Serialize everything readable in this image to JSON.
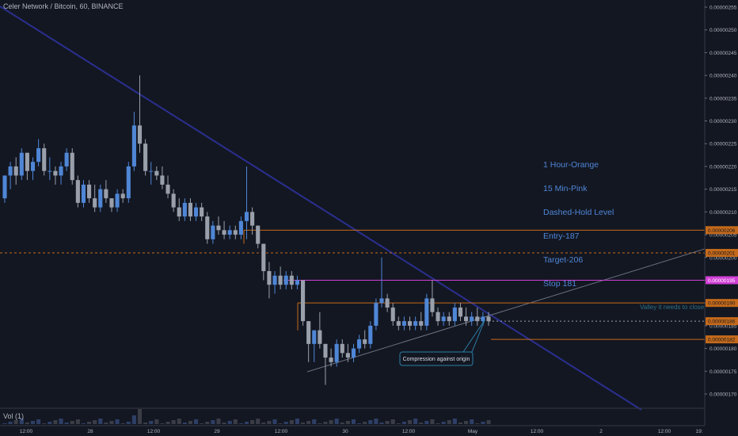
{
  "header": {
    "title": "Celer Network / Bitcoin, 60, BINANCE"
  },
  "volume": {
    "label": "Vol (1)"
  },
  "notes": [
    "1 Hour-Orange",
    "15 Min-Pink",
    "Dashed-Hold Level",
    "Entry-187",
    "Target-206",
    "Stop 181"
  ],
  "annotations": {
    "callout": "Compression against origin",
    "valley": "Valley it needs to close"
  },
  "colors": {
    "background": "#131722",
    "up": "#4f86d6",
    "down": "#9aa0ab",
    "orange": "#c56a1a",
    "pink": "#d13fd6",
    "trend": "#2a2f8f"
  },
  "chart_data": {
    "type": "candlestick",
    "symbol": "Celer Network / Bitcoin",
    "interval": "60",
    "exchange": "BINANCE",
    "y_ticks": [
      "0.00000170",
      "0.00000175",
      "0.00000180",
      "0.00000185",
      "0.00000190",
      "0.00000195",
      "0.00000200",
      "0.00000205",
      "0.00000210",
      "0.00000215",
      "0.00000220",
      "0.00000225",
      "0.00000230",
      "0.00000235",
      "0.00000240",
      "0.00000245",
      "0.00000250",
      "0.00000255"
    ],
    "x_ticks": [
      "12:00",
      "28",
      "12:00",
      "29",
      "12:00",
      "30",
      "12:00",
      "May",
      "12:00",
      "2",
      "12:00",
      "19:"
    ],
    "price_tags": [
      {
        "value": "0.00000206",
        "style": "orange"
      },
      {
        "value": "0.00000201",
        "style": "orange-dashed"
      },
      {
        "value": "0.00000195",
        "style": "pink"
      },
      {
        "value": "0.00000190",
        "style": "orange"
      },
      {
        "value": "0.00000186",
        "style": "orange-last"
      },
      {
        "value": "0.00000182",
        "style": "orange"
      }
    ],
    "candles": [
      [
        2.13e-06,
        2.18e-06,
        2.12e-06,
        2.18e-06
      ],
      [
        2.18e-06,
        2.21e-06,
        2.15e-06,
        2.2e-06
      ],
      [
        2.2e-06,
        2.22e-06,
        2.16e-06,
        2.18e-06
      ],
      [
        2.18e-06,
        2.24e-06,
        2.17e-06,
        2.23e-06
      ],
      [
        2.23e-06,
        2.23e-06,
        2.17e-06,
        2.19e-06
      ],
      [
        2.19e-06,
        2.22e-06,
        2.17e-06,
        2.21e-06
      ],
      [
        2.21e-06,
        2.26e-06,
        2.2e-06,
        2.24e-06
      ],
      [
        2.24e-06,
        2.25e-06,
        2.18e-06,
        2.19e-06
      ],
      [
        2.19e-06,
        2.22e-06,
        2.17e-06,
        2.19e-06
      ],
      [
        2.19e-06,
        2.2e-06,
        2.16e-06,
        2.18e-06
      ],
      [
        2.18e-06,
        2.21e-06,
        2.16e-06,
        2.2e-06
      ],
      [
        2.2e-06,
        2.24e-06,
        2.19e-06,
        2.23e-06
      ],
      [
        2.23e-06,
        2.24e-06,
        2.16e-06,
        2.17e-06
      ],
      [
        2.17e-06,
        2.18e-06,
        2.11e-06,
        2.12e-06
      ],
      [
        2.12e-06,
        2.17e-06,
        2.11e-06,
        2.16e-06
      ],
      [
        2.16e-06,
        2.17e-06,
        2.12e-06,
        2.13e-06
      ],
      [
        2.13e-06,
        2.16e-06,
        2.1e-06,
        2.11e-06
      ],
      [
        2.11e-06,
        2.16e-06,
        2.1e-06,
        2.15e-06
      ],
      [
        2.15e-06,
        2.17e-06,
        2.12e-06,
        2.13e-06
      ],
      [
        2.13e-06,
        2.13e-06,
        2.1e-06,
        2.11e-06
      ],
      [
        2.11e-06,
        2.15e-06,
        2.1e-06,
        2.14e-06
      ],
      [
        2.14e-06,
        2.15e-06,
        2.12e-06,
        2.13e-06
      ],
      [
        2.13e-06,
        2.21e-06,
        2.12e-06,
        2.2e-06
      ],
      [
        2.2e-06,
        2.32e-06,
        2.19e-06,
        2.29e-06
      ],
      [
        2.29e-06,
        2.4e-06,
        2.23e-06,
        2.25e-06
      ],
      [
        2.25e-06,
        2.26e-06,
        2.18e-06,
        2.19e-06
      ],
      [
        2.19e-06,
        2.21e-06,
        2.16e-06,
        2.19e-06
      ],
      [
        2.19e-06,
        2.2e-06,
        2.17e-06,
        2.18e-06
      ],
      [
        2.18e-06,
        2.2e-06,
        2.15e-06,
        2.16e-06
      ],
      [
        2.16e-06,
        2.18e-06,
        2.13e-06,
        2.14e-06
      ],
      [
        2.14e-06,
        2.15e-06,
        2.1e-06,
        2.11e-06
      ],
      [
        2.11e-06,
        2.13e-06,
        2.08e-06,
        2.09e-06
      ],
      [
        2.09e-06,
        2.13e-06,
        2.08e-06,
        2.12e-06
      ],
      [
        2.12e-06,
        2.13e-06,
        2.08e-06,
        2.09e-06
      ],
      [
        2.09e-06,
        2.12e-06,
        2.08e-06,
        2.11e-06
      ],
      [
        2.11e-06,
        2.12e-06,
        2.08e-06,
        2.09e-06
      ],
      [
        2.09e-06,
        2.1e-06,
        2.03e-06,
        2.04e-06
      ],
      [
        2.04e-06,
        2.08e-06,
        2.03e-06,
        2.07e-06
      ],
      [
        2.07e-06,
        2.09e-06,
        2.05e-06,
        2.06e-06
      ],
      [
        2.06e-06,
        2.08e-06,
        2.04e-06,
        2.05e-06
      ],
      [
        2.05e-06,
        2.07e-06,
        2.04e-06,
        2.06e-06
      ],
      [
        2.06e-06,
        2.07e-06,
        2.04e-06,
        2.05e-06
      ],
      [
        2.05e-06,
        2.09e-06,
        2.04e-06,
        2.08e-06
      ],
      [
        2.08e-06,
        2.2e-06,
        2.04e-06,
        2.1e-06
      ],
      [
        2.1e-06,
        2.11e-06,
        2.05e-06,
        2.07e-06
      ],
      [
        2.07e-06,
        2.07e-06,
        2.02e-06,
        2.03e-06
      ],
      [
        2.03e-06,
        2.03e-06,
        1.95e-06,
        1.97e-06
      ],
      [
        1.97e-06,
        1.99e-06,
        1.91e-06,
        1.94e-06
      ],
      [
        1.94e-06,
        1.97e-06,
        1.92e-06,
        1.96e-06
      ],
      [
        1.96e-06,
        1.98e-06,
        1.93e-06,
        1.94e-06
      ],
      [
        1.94e-06,
        1.97e-06,
        1.93e-06,
        1.96e-06
      ],
      [
        1.96e-06,
        1.97e-06,
        1.93e-06,
        1.94e-06
      ],
      [
        1.94e-06,
        1.96e-06,
        1.93e-06,
        1.95e-06
      ],
      [
        1.95e-06,
        1.95e-06,
        1.85e-06,
        1.86e-06
      ],
      [
        1.86e-06,
        1.86e-06,
        1.77e-06,
        1.81e-06
      ],
      [
        1.81e-06,
        1.84e-06,
        1.77e-06,
        1.84e-06
      ],
      [
        1.84e-06,
        1.88e-06,
        1.8e-06,
        1.81e-06
      ],
      [
        1.81e-06,
        1.81e-06,
        1.72e-06,
        1.78e-06
      ],
      [
        1.78e-06,
        1.8e-06,
        1.76e-06,
        1.77e-06
      ],
      [
        1.77e-06,
        1.82e-06,
        1.76e-06,
        1.81e-06
      ],
      [
        1.81e-06,
        1.82e-06,
        1.78e-06,
        1.79e-06
      ],
      [
        1.79e-06,
        1.81e-06,
        1.77e-06,
        1.78e-06
      ],
      [
        1.78e-06,
        1.81e-06,
        1.77e-06,
        1.8e-06
      ],
      [
        1.8e-06,
        1.83e-06,
        1.79e-06,
        1.82e-06
      ],
      [
        1.82e-06,
        1.84e-06,
        1.8e-06,
        1.81e-06
      ],
      [
        1.81e-06,
        1.86e-06,
        1.8e-06,
        1.85e-06
      ],
      [
        1.85e-06,
        1.91e-06,
        1.84e-06,
        1.9e-06
      ],
      [
        1.9e-06,
        2e-06,
        1.89e-06,
        1.91e-06
      ],
      [
        1.91e-06,
        1.92e-06,
        1.88e-06,
        1.89e-06
      ],
      [
        1.89e-06,
        1.9e-06,
        1.85e-06,
        1.86e-06
      ],
      [
        1.86e-06,
        1.87e-06,
        1.84e-06,
        1.85e-06
      ],
      [
        1.85e-06,
        1.87e-06,
        1.84e-06,
        1.86e-06
      ],
      [
        1.86e-06,
        1.87e-06,
        1.84e-06,
        1.85e-06
      ],
      [
        1.85e-06,
        1.87e-06,
        1.84e-06,
        1.86e-06
      ],
      [
        1.86e-06,
        1.88e-06,
        1.84e-06,
        1.85e-06
      ],
      [
        1.85e-06,
        1.92e-06,
        1.84e-06,
        1.91e-06
      ],
      [
        1.91e-06,
        1.95e-06,
        1.87e-06,
        1.88e-06
      ],
      [
        1.88e-06,
        1.89e-06,
        1.85e-06,
        1.86e-06
      ],
      [
        1.86e-06,
        1.88e-06,
        1.85e-06,
        1.87e-06
      ],
      [
        1.87e-06,
        1.88e-06,
        1.85e-06,
        1.86e-06
      ],
      [
        1.86e-06,
        1.9e-06,
        1.85e-06,
        1.89e-06
      ],
      [
        1.89e-06,
        1.9e-06,
        1.86e-06,
        1.87e-06
      ],
      [
        1.87e-06,
        1.89e-06,
        1.85e-06,
        1.86e-06
      ],
      [
        1.86e-06,
        1.88e-06,
        1.85e-06,
        1.87e-06
      ],
      [
        1.87e-06,
        1.89e-06,
        1.85e-06,
        1.86e-06
      ],
      [
        1.86e-06,
        1.88e-06,
        1.85e-06,
        1.87e-06
      ],
      [
        1.87e-06,
        1.88e-06,
        1.85e-06,
        1.86e-06
      ]
    ]
  }
}
